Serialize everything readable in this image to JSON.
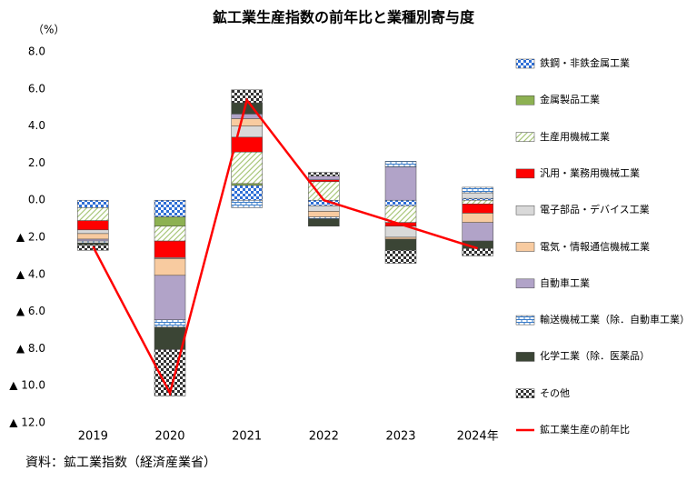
{
  "chart_data": {
    "type": "bar",
    "stacked": true,
    "title": "鉱工業生産指数の前年比と業種別寄与度",
    "y_label": "（%）",
    "source": "資料：鉱工業指数（経済産業省）",
    "categories": [
      "2019",
      "2020",
      "2021",
      "2022",
      "2023",
      "2024年"
    ],
    "ylim": [
      -12,
      8
    ],
    "yticks": [
      {
        "value": 8,
        "label": "8.0"
      },
      {
        "value": 6,
        "label": "6.0"
      },
      {
        "value": 4,
        "label": "4.0"
      },
      {
        "value": 2,
        "label": "2.0"
      },
      {
        "value": 0,
        "label": "0.0"
      },
      {
        "value": -2,
        "label": "▲ 2.0"
      },
      {
        "value": -4,
        "label": "▲ 4.0"
      },
      {
        "value": -6,
        "label": "▲ 6.0"
      },
      {
        "value": -8,
        "label": "▲ 8.0"
      },
      {
        "value": -10,
        "label": "▲ 10.0"
      },
      {
        "value": -12,
        "label": "▲ 12.0"
      }
    ],
    "series": [
      {
        "name": "鉄鋼・非鉄金属工業",
        "color": "#2f6fd6",
        "values": [
          -0.4,
          -0.9,
          0.8,
          -0.3,
          -0.3,
          0.1
        ]
      },
      {
        "name": "金属製品工業",
        "color": "#8db152",
        "values": [
          0,
          -0.5,
          0.1,
          0,
          0,
          0
        ]
      },
      {
        "name": "生産用機械工業",
        "color": "#a9c77a",
        "values": [
          -0.7,
          -0.8,
          1.7,
          1.0,
          -0.9,
          -0.2
        ]
      },
      {
        "name": "汎用・業務用機械工業",
        "color": "#ff0000",
        "values": [
          -0.5,
          -0.9,
          0.8,
          0.1,
          -0.2,
          -0.5
        ]
      },
      {
        "name": "電子部品・デバイス工業",
        "color": "#d9d9d9",
        "values": [
          -0.2,
          -0.05,
          0.6,
          -0.3,
          -0.6,
          0.3
        ]
      },
      {
        "name": "電気・情報通信機械工業",
        "color": "#f8cba0",
        "values": [
          -0.3,
          -0.9,
          0.4,
          -0.3,
          -0.1,
          -0.5
        ]
      },
      {
        "name": "自動車工業",
        "color": "#b1a3c8",
        "values": [
          -0.1,
          -2.4,
          0.25,
          0.2,
          1.8,
          -1.0
        ]
      },
      {
        "name": "輸送機械工業（除．自動車工業）",
        "color": "#3a7cc9",
        "values": [
          -0.1,
          -0.4,
          -0.4,
          -0.1,
          0.3,
          0.3
        ]
      },
      {
        "name": "化学工業（除．医薬品）",
        "color": "#3b4535",
        "values": [
          -0.1,
          -1.2,
          0.6,
          -0.4,
          -0.6,
          -0.4
        ]
      },
      {
        "name": "その他",
        "color": "#333333",
        "values": [
          -0.3,
          -2.5,
          0.7,
          0.2,
          -0.7,
          -0.4
        ]
      },
      {
        "name": "鉱工業生産の前年比",
        "color": "#ff0000",
        "type": "line",
        "values": [
          -2.5,
          -10.4,
          5.4,
          0.0,
          -1.3,
          -2.6
        ]
      }
    ]
  }
}
